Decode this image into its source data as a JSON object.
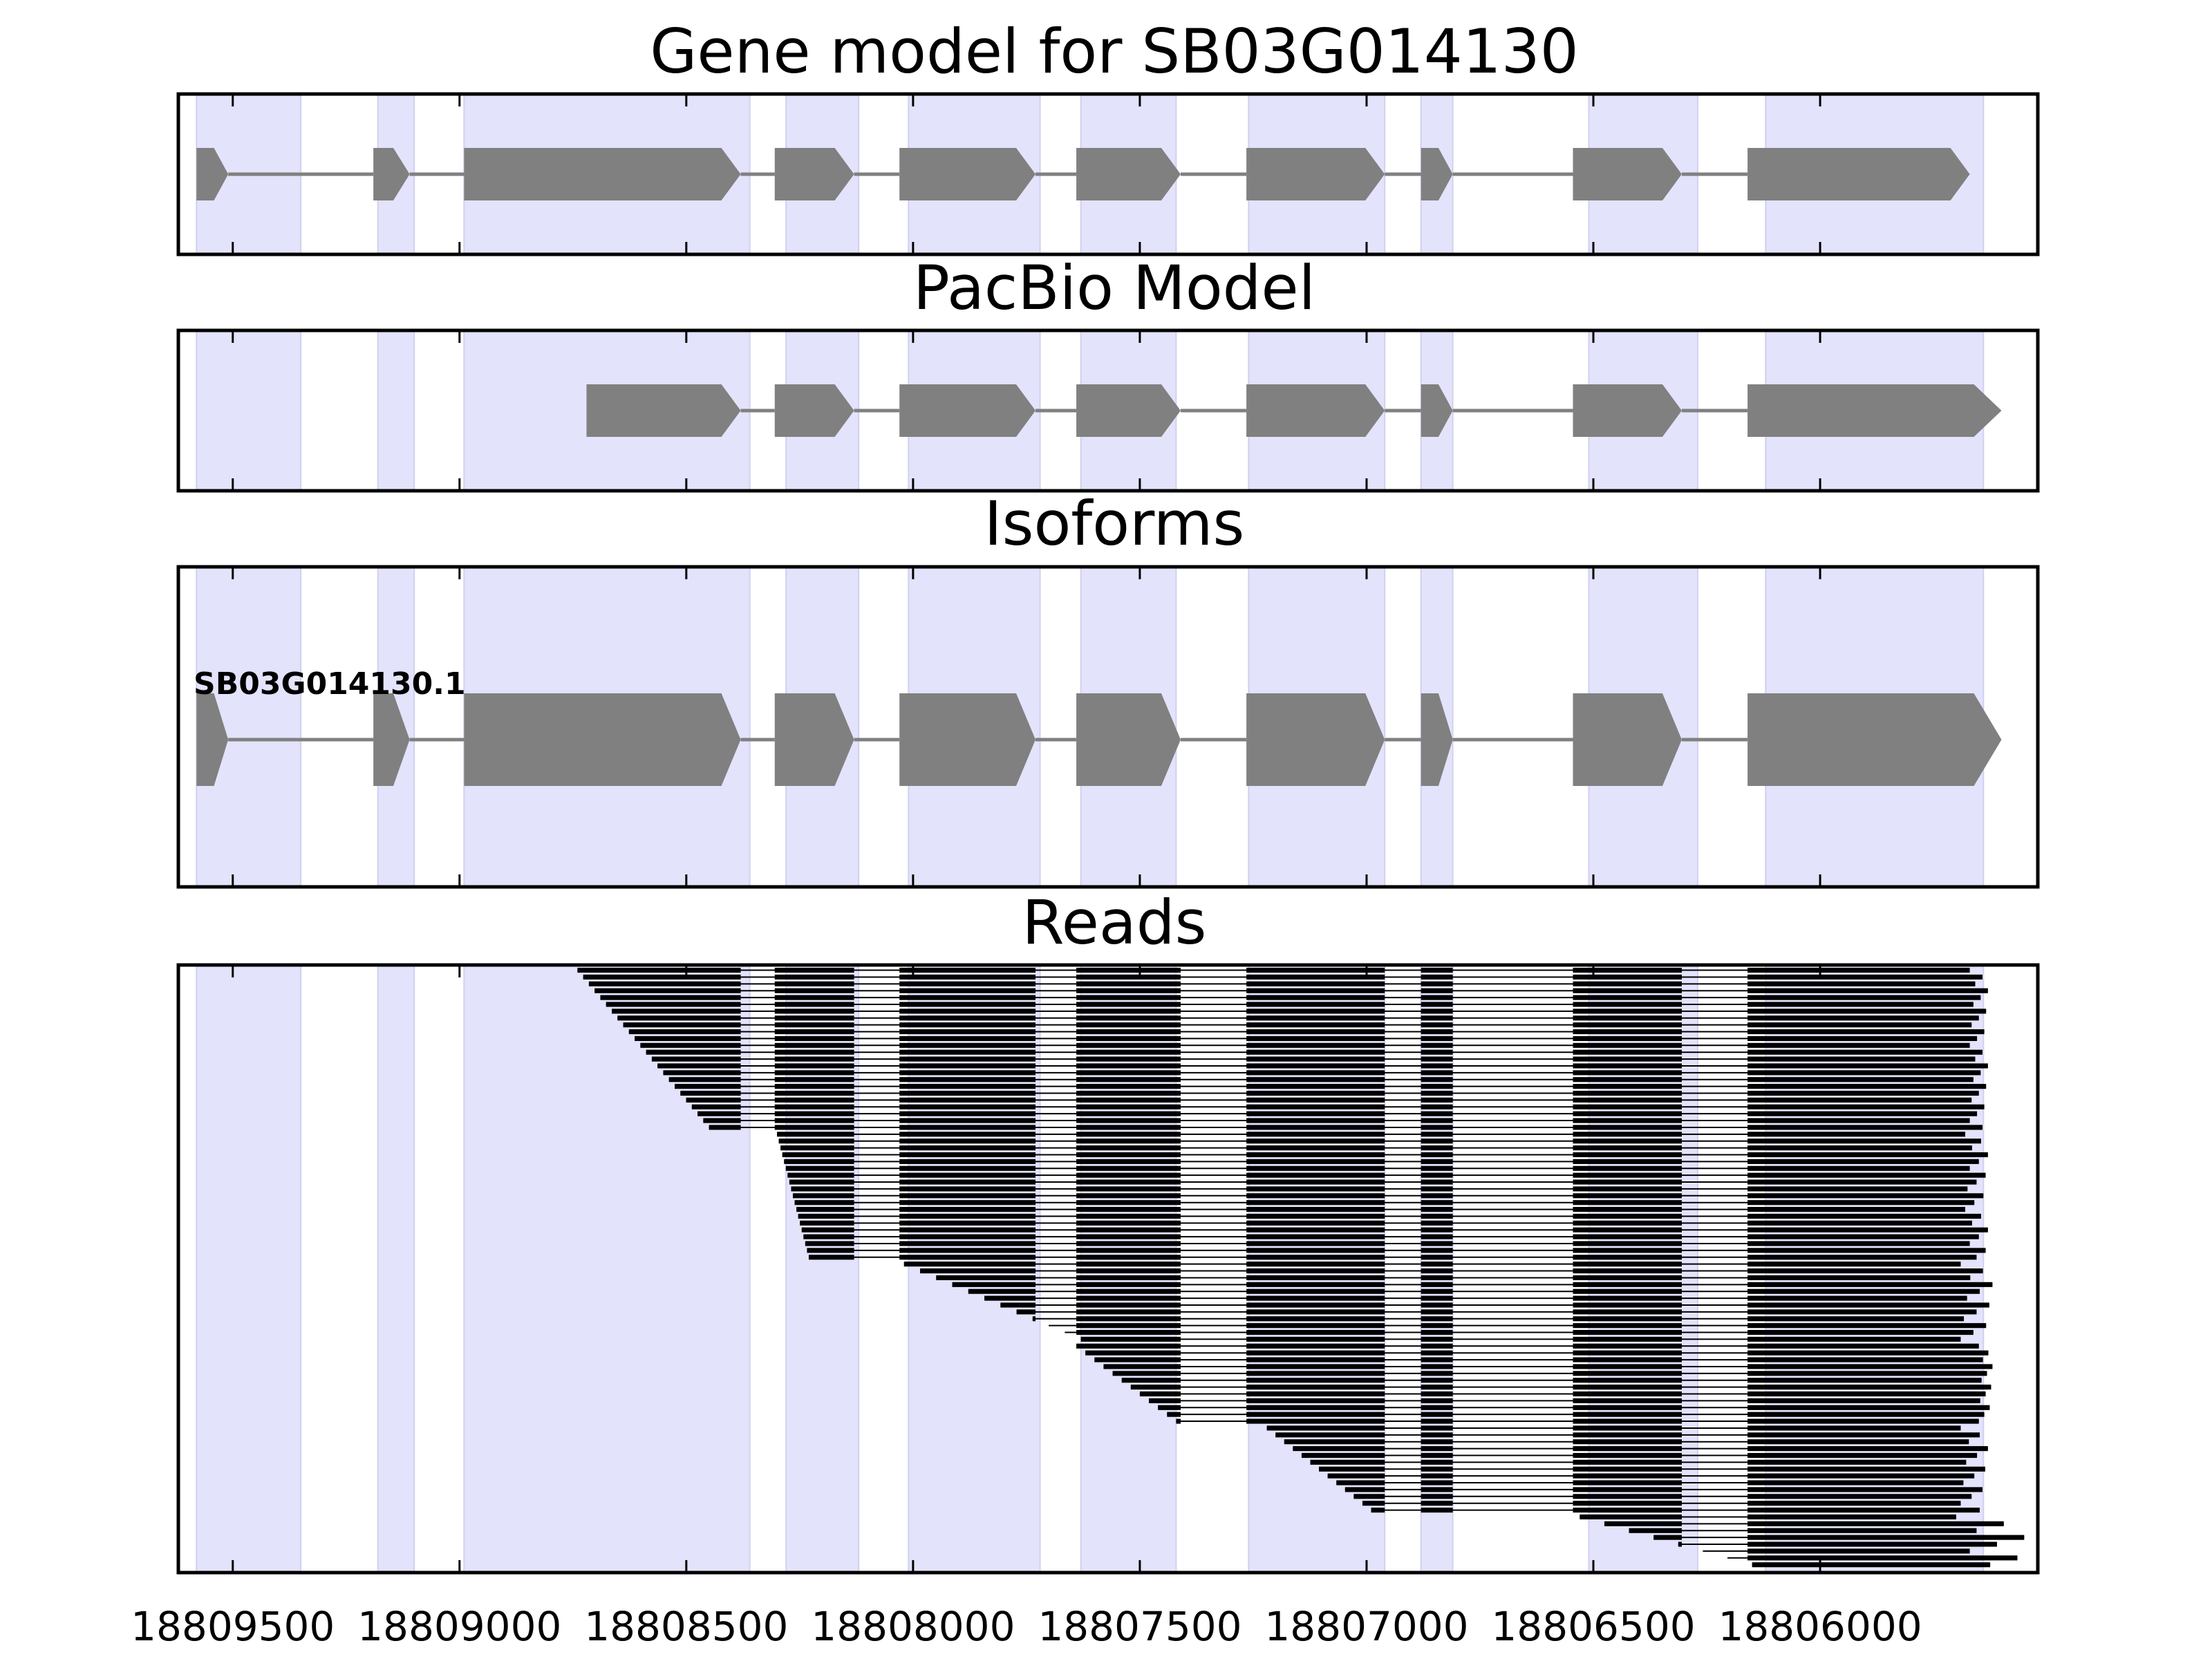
{
  "chart_data": [
    {
      "type": "gene-track",
      "title": "Gene model for SB03G014130",
      "exons": [
        [
          18809580,
          18809510
        ],
        [
          18809190,
          18809110
        ],
        [
          18808990,
          18808380
        ],
        [
          18808305,
          18808130
        ],
        [
          18808030,
          18807730
        ],
        [
          18807640,
          18807410
        ],
        [
          18807265,
          18806960
        ],
        [
          18806880,
          18806810
        ],
        [
          18806545,
          18806305
        ],
        [
          18806160,
          18805670
        ]
      ],
      "introns": [
        [
          18809510,
          18809190
        ],
        [
          18809110,
          18808990
        ],
        [
          18808380,
          18808305
        ],
        [
          18808130,
          18808030
        ],
        [
          18807730,
          18807640
        ],
        [
          18807410,
          18807265
        ],
        [
          18806960,
          18806880
        ],
        [
          18806810,
          18806545
        ],
        [
          18806305,
          18806160
        ]
      ]
    },
    {
      "type": "gene-track",
      "title": "PacBio Model",
      "exons": [
        [
          18808720,
          18808380
        ],
        [
          18808305,
          18808130
        ],
        [
          18808030,
          18807730
        ],
        [
          18807640,
          18807410
        ],
        [
          18807265,
          18806960
        ],
        [
          18806880,
          18806810
        ],
        [
          18806545,
          18806305
        ],
        [
          18806160,
          18805600
        ]
      ],
      "introns": [
        [
          18808380,
          18808305
        ],
        [
          18808130,
          18808030
        ],
        [
          18807730,
          18807640
        ],
        [
          18807410,
          18807265
        ],
        [
          18806960,
          18806880
        ],
        [
          18806810,
          18806545
        ],
        [
          18806305,
          18806160
        ]
      ]
    },
    {
      "type": "gene-track",
      "title": "Isoforms",
      "isoforms": [
        {
          "name": "SB03G014130.1",
          "exons": [
            [
              18809580,
              18809510
            ],
            [
              18809190,
              18809110
            ],
            [
              18808990,
              18808380
            ],
            [
              18808305,
              18808130
            ],
            [
              18808030,
              18807730
            ],
            [
              18807640,
              18807410
            ],
            [
              18807265,
              18806960
            ],
            [
              18806880,
              18806810
            ],
            [
              18806545,
              18806305
            ],
            [
              18806160,
              18805600
            ]
          ],
          "introns": [
            [
              18809510,
              18809190
            ],
            [
              18809110,
              18808990
            ],
            [
              18808380,
              18808305
            ],
            [
              18808130,
              18808030
            ],
            [
              18807730,
              18807640
            ],
            [
              18807410,
              18807265
            ],
            [
              18806960,
              18806880
            ],
            [
              18806810,
              18806545
            ],
            [
              18806305,
              18806160
            ]
          ]
        }
      ]
    },
    {
      "type": "read-pileup",
      "title": "Reads",
      "read_count": 88,
      "read_groups": [
        {
          "count": 24,
          "start_from": 18808740,
          "start_to": 18808450,
          "end_from": 18805670,
          "end_to": 18805630
        },
        {
          "count": 19,
          "start_from": 18808300,
          "start_to": 18808230,
          "end_from": 18805680,
          "end_to": 18805630
        },
        {
          "count": 12,
          "start_from": 18808020,
          "start_to": 18807630,
          "end_from": 18805690,
          "end_to": 18805620
        },
        {
          "count": 12,
          "start_from": 18807640,
          "start_to": 18807420,
          "end_from": 18805650,
          "end_to": 18805620
        },
        {
          "count": 13,
          "start_from": 18807220,
          "start_to": 18806990,
          "end_from": 18805690,
          "end_to": 18805630
        },
        {
          "count": 8,
          "start_from": 18806530,
          "start_to": 18806150,
          "end_from": 18805700,
          "end_to": 18805550
        }
      ]
    }
  ],
  "exon_shading": [
    [
      18809580,
      18809350
    ],
    [
      18809180,
      18809100
    ],
    [
      18808990,
      18808360
    ],
    [
      18808280,
      18808120
    ],
    [
      18808010,
      18807720
    ],
    [
      18807630,
      18807420
    ],
    [
      18807260,
      18806960
    ],
    [
      18806880,
      18806810
    ],
    [
      18806510,
      18806270
    ],
    [
      18806120,
      18805640
    ]
  ],
  "xaxis": {
    "reversed": true,
    "xlim": [
      18809620,
      18805520
    ],
    "ticks": [
      18809500,
      18809000,
      18808500,
      18808000,
      18807500,
      18807000,
      18806500,
      18806000
    ],
    "tick_labels": [
      "18809500",
      "18809000",
      "18808500",
      "18808000",
      "18807500",
      "18807000",
      "18806500",
      "18806000"
    ]
  },
  "colors": {
    "exon": "#808080",
    "intron": "#808080",
    "shading": "#e3e3fc",
    "shading_edge": "#d0d0f0",
    "read": "#000000",
    "frame": "#000000"
  }
}
